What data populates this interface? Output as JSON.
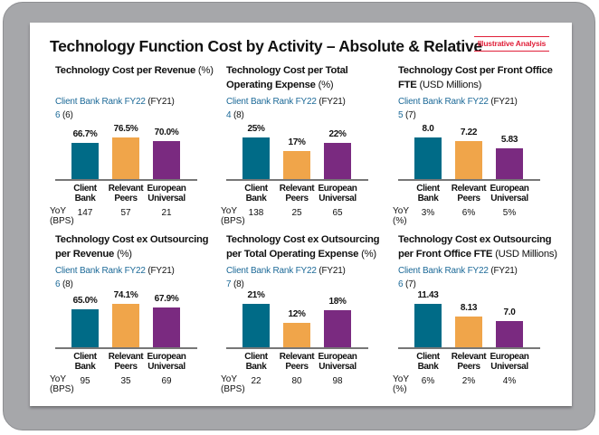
{
  "title": "Technology Function Cost by Activity – Absolute & Relative",
  "badge": "Illustrative Analysis",
  "colors": {
    "client_bank": "#006b87",
    "relevant_peers": "#f0a54a",
    "european_universal": "#7a2a80",
    "rank_text": "#1d6a98",
    "badge": "#e0203a"
  },
  "categories": [
    [
      "Client",
      "Bank"
    ],
    [
      "Relevant",
      "Peers"
    ],
    [
      "European",
      "Universal"
    ]
  ],
  "rank_label": "Client Bank Rank FY22",
  "rank_prev_label": "(FY21)",
  "panels": [
    {
      "title": "Technology Cost per Revenue",
      "unit": "(%)",
      "rank": "6",
      "prev": "(6)",
      "values": [
        66.7,
        76.5,
        70.0
      ],
      "labels": [
        "66.7%",
        "76.5%",
        "70.0%"
      ],
      "yoy_label": [
        "YoY",
        "(BPS)"
      ],
      "yoy": [
        "147",
        "57",
        "21"
      ]
    },
    {
      "title": "Technology Cost per Total Operating Expense",
      "unit": "(%)",
      "rank": "4",
      "prev": "(8)",
      "values": [
        25,
        17,
        22
      ],
      "labels": [
        "25%",
        "17%",
        "22%"
      ],
      "yoy_label": [
        "YoY",
        "(BPS)"
      ],
      "yoy": [
        "138",
        "25",
        "65"
      ]
    },
    {
      "title": "Technology Cost per Front Office FTE",
      "unit": "(USD Millions)",
      "rank": "5",
      "prev": "(7)",
      "values": [
        8.0,
        7.22,
        5.83
      ],
      "labels": [
        "8.0",
        "7.22",
        "5.83"
      ],
      "yoy_label": [
        "YoY",
        "(%)"
      ],
      "yoy": [
        "3%",
        "6%",
        "5%"
      ]
    },
    {
      "title": "Technology Cost ex Outsourcing per Revenue",
      "unit": "(%)",
      "rank": "6",
      "prev": "(8)",
      "values": [
        65.0,
        74.1,
        67.9
      ],
      "labels": [
        "65.0%",
        "74.1%",
        "67.9%"
      ],
      "yoy_label": [
        "YoY",
        "(BPS)"
      ],
      "yoy": [
        "95",
        "35",
        "69"
      ]
    },
    {
      "title": "Technology Cost ex Outsourcing per Total Operating Expense",
      "unit": "(%)",
      "rank": "7",
      "prev": "(8)",
      "values": [
        21,
        12,
        18
      ],
      "labels": [
        "21%",
        "12%",
        "18%"
      ],
      "yoy_label": [
        "YoY",
        "(BPS)"
      ],
      "yoy": [
        "22",
        "80",
        "98"
      ]
    },
    {
      "title": "Technology Cost ex Outsourcing per Front Office FTE",
      "unit": "(USD Millions)",
      "rank": "6",
      "prev": "(7)",
      "values": [
        11.43,
        8.13,
        7.0
      ],
      "labels": [
        "11.43",
        "8.13",
        "7.0"
      ],
      "yoy_label": [
        "YoY",
        "(%)"
      ],
      "yoy": [
        "6%",
        "2%",
        "4%"
      ]
    }
  ]
}
